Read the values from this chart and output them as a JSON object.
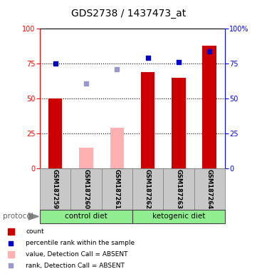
{
  "title": "GDS2738 / 1437473_at",
  "samples": [
    "GSM187259",
    "GSM187260",
    "GSM187261",
    "GSM187262",
    "GSM187263",
    "GSM187264"
  ],
  "bar_values": [
    50,
    null,
    null,
    69,
    65,
    88
  ],
  "bar_absent_values": [
    null,
    15,
    29,
    null,
    null,
    null
  ],
  "bar_color_present": "#cc0000",
  "bar_color_absent": "#ffb0b0",
  "dot_values": [
    75,
    null,
    null,
    79,
    76,
    84
  ],
  "dot_absent_values": [
    null,
    61,
    71,
    null,
    null,
    null
  ],
  "dot_color_present": "#0000cc",
  "dot_color_absent": "#9999cc",
  "ylim": [
    0,
    100
  ],
  "yticks": [
    0,
    25,
    50,
    75,
    100
  ],
  "groups": [
    {
      "label": "control diet",
      "start": 0,
      "end": 3
    },
    {
      "label": "ketogenic diet",
      "start": 3,
      "end": 6
    }
  ],
  "group_color": "#90EE90",
  "protocol_label": "protocol",
  "legend_items": [
    {
      "label": "count",
      "color": "#cc0000",
      "type": "bar"
    },
    {
      "label": "percentile rank within the sample",
      "color": "#0000cc",
      "type": "dot"
    },
    {
      "label": "value, Detection Call = ABSENT",
      "color": "#ffb0b0",
      "type": "bar"
    },
    {
      "label": "rank, Detection Call = ABSENT",
      "color": "#9999cc",
      "type": "dot"
    }
  ],
  "bar_width": 0.45,
  "sample_label_color": "#c8c8c8",
  "sample_label_edge": "#888888"
}
